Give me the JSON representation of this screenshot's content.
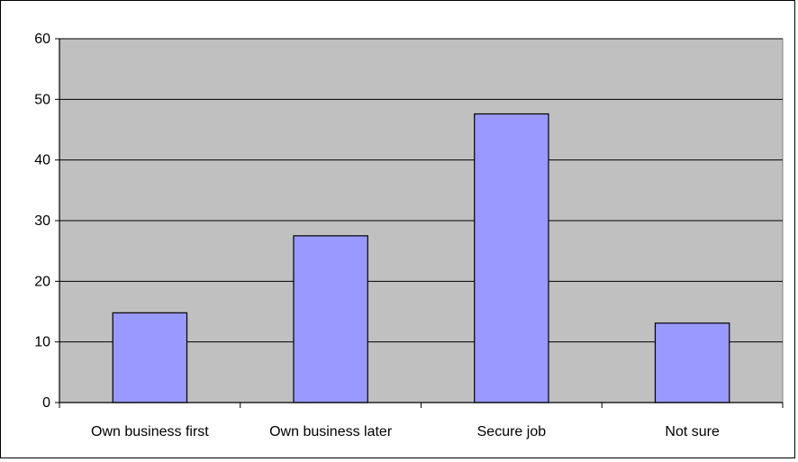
{
  "chart_data": {
    "type": "bar",
    "categories": [
      "Own business first",
      "Own business later",
      "Secure job",
      "Not sure"
    ],
    "values": [
      14.8,
      27.5,
      47.6,
      13.1
    ],
    "title": "",
    "xlabel": "",
    "ylabel": "",
    "ylim": [
      0,
      60
    ],
    "yticks": [
      0,
      10,
      20,
      30,
      40,
      50,
      60
    ],
    "grid": true,
    "legend": "none",
    "colors": {
      "plot_background": "#c0c0c0",
      "bar_fill": "#9999ff",
      "bar_stroke": "#000000",
      "gridline": "#000000"
    }
  }
}
